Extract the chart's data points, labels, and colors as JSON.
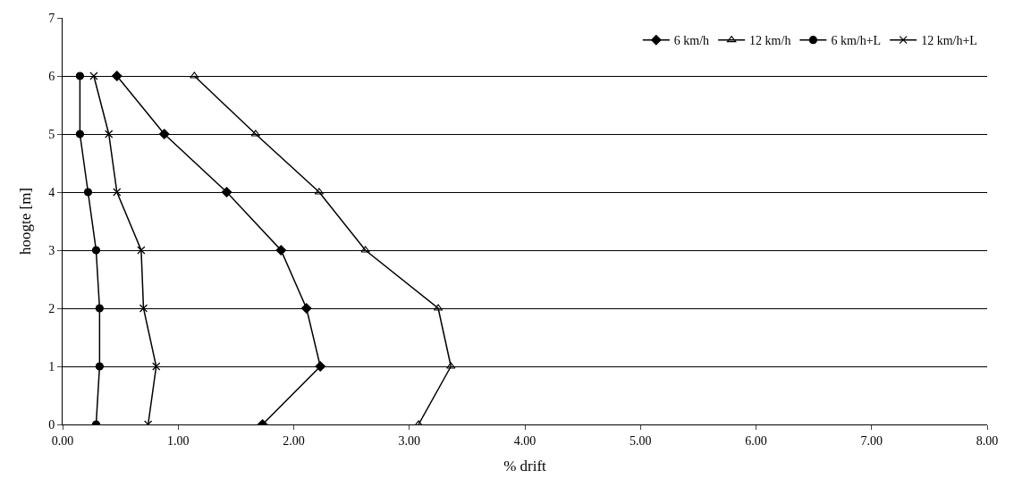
{
  "chart_data": {
    "type": "line",
    "xlabel": "% drift",
    "ylabel": "hoogte [m]",
    "xlim": [
      0,
      8
    ],
    "xticks": [
      {
        "value": 0,
        "label": "0.00"
      },
      {
        "value": 1,
        "label": "1.00"
      },
      {
        "value": 2,
        "label": "2.00"
      },
      {
        "value": 3,
        "label": "3.00"
      },
      {
        "value": 4,
        "label": "4.00"
      },
      {
        "value": 5,
        "label": "5.00"
      },
      {
        "value": 6,
        "label": "6.00"
      },
      {
        "value": 7,
        "label": "7.00"
      },
      {
        "value": 8,
        "label": "8.00"
      }
    ],
    "ylim": [
      0,
      7
    ],
    "yticks": [
      0,
      1,
      2,
      3,
      4,
      5,
      6,
      7
    ],
    "grid": "y",
    "legend": "top right",
    "series": [
      {
        "name": "6 km/h",
        "color": "#000000",
        "marker": "diamond",
        "x": [
          1.73,
          2.23,
          2.11,
          1.89,
          1.42,
          0.88,
          0.47
        ],
        "values": [
          0,
          1,
          2,
          3,
          4,
          5,
          6
        ]
      },
      {
        "name": "12 km/h",
        "color": "#000000",
        "marker": "triangle",
        "x": [
          3.08,
          3.36,
          3.25,
          2.62,
          2.22,
          1.67,
          1.14
        ],
        "values": [
          0,
          1,
          2,
          3,
          4,
          5,
          6
        ]
      },
      {
        "name": "6 km/h+L",
        "color": "#000000",
        "marker": "circle",
        "x": [
          0.29,
          0.32,
          0.32,
          0.29,
          0.22,
          0.15,
          0.15
        ],
        "values": [
          0,
          1,
          2,
          3,
          4,
          5,
          6
        ]
      },
      {
        "name": "12 km/h+L",
        "color": "#000000",
        "marker": "cross",
        "x": [
          0.74,
          0.81,
          0.7,
          0.68,
          0.47,
          0.4,
          0.27
        ],
        "values": [
          0,
          1,
          2,
          3,
          4,
          5,
          6
        ]
      }
    ]
  }
}
